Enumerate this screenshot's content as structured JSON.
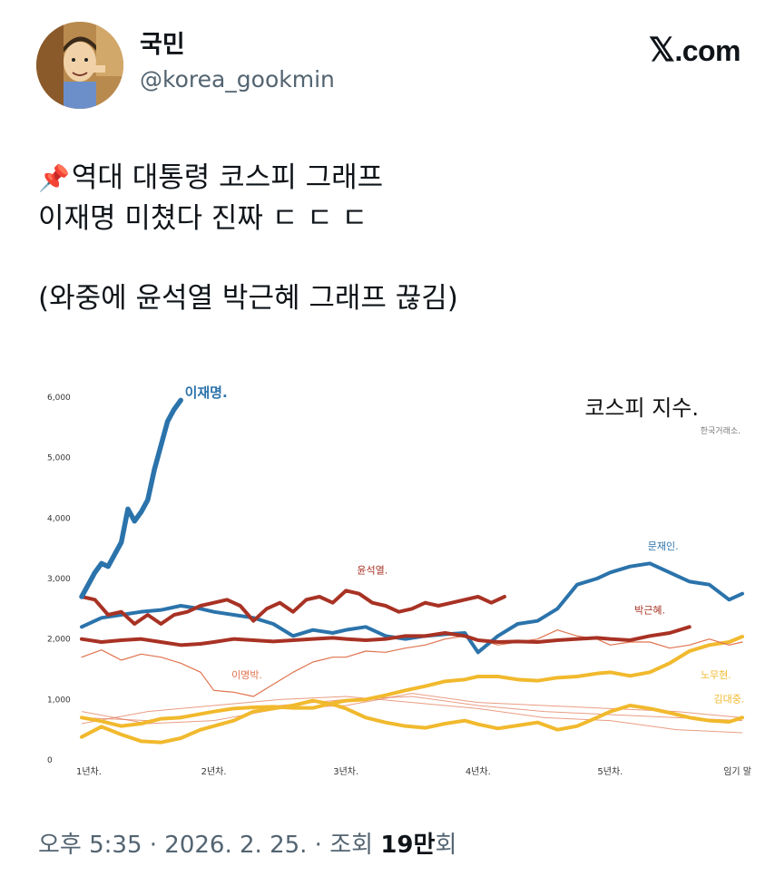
{
  "author": {
    "display_name": "국민",
    "handle": "@korea_gookmin",
    "avatar_icon": "cartoon-man-avatar"
  },
  "brand": {
    "label": ".com",
    "glyph": "𝕏"
  },
  "tweet": {
    "pin_icon": "📌",
    "line1": "역대 대통령 코스피 그래프",
    "line2": "이재명 미쳤다 진짜 ㄷ ㄷ ㄷ",
    "line3": "(와중에 윤석열 박근혜 그래프 끊김)"
  },
  "meta": {
    "time": "오후 5:35",
    "date": "2026. 2. 25.",
    "views_label": "조회",
    "views_count": "19만",
    "views_suffix": "회",
    "separator": " · "
  },
  "chart_data": {
    "type": "line",
    "title": "코스피 지수.",
    "subtitle": "한국거래소.",
    "y_ticks": [
      "6,000",
      "5,000",
      "4,000",
      "3,000",
      "2,000",
      "1,000",
      "0"
    ],
    "ylim": [
      0,
      6000
    ],
    "xlim": [
      0,
      5
    ],
    "x_ticks": [
      {
        "label": "1년차.",
        "value": 0
      },
      {
        "label": "2년차.",
        "value": 1
      },
      {
        "label": "3년차.",
        "value": 2
      },
      {
        "label": "4년차.",
        "value": 3
      },
      {
        "label": "5년차.",
        "value": 4
      },
      {
        "label": "임기 말",
        "value": 5
      }
    ],
    "grid": false,
    "series": [
      {
        "name": "김대중.",
        "color": "#f1b92d",
        "x": [
          0,
          0.15,
          0.3,
          0.45,
          0.6,
          0.75,
          0.9,
          1.0,
          1.15,
          1.3,
          1.45,
          1.6,
          1.75,
          1.9,
          2.0,
          2.15,
          2.3,
          2.45,
          2.6,
          2.75,
          2.9,
          3.0,
          3.15,
          3.3,
          3.45,
          3.6,
          3.75,
          3.9,
          4.0,
          4.15,
          4.3,
          4.45,
          4.6,
          4.75,
          4.9,
          5.0
        ],
        "y": [
          380,
          550,
          420,
          310,
          290,
          360,
          500,
          560,
          650,
          800,
          850,
          900,
          980,
          920,
          850,
          700,
          620,
          560,
          530,
          600,
          650,
          590,
          520,
          570,
          620,
          500,
          560,
          700,
          800,
          900,
          850,
          780,
          700,
          650,
          630,
          700
        ]
      },
      {
        "name": "노무현.",
        "color": "#f1b92d",
        "x": [
          0,
          0.15,
          0.3,
          0.45,
          0.6,
          0.75,
          0.9,
          1.0,
          1.15,
          1.3,
          1.45,
          1.6,
          1.75,
          1.9,
          2.0,
          2.15,
          2.3,
          2.45,
          2.6,
          2.75,
          2.9,
          3.0,
          3.15,
          3.3,
          3.45,
          3.6,
          3.75,
          3.9,
          4.0,
          4.15,
          4.3,
          4.45,
          4.6,
          4.75,
          4.9,
          5.0
        ],
        "y": [
          700,
          640,
          560,
          600,
          680,
          700,
          760,
          800,
          850,
          870,
          880,
          860,
          860,
          940,
          980,
          1000,
          1070,
          1150,
          1220,
          1300,
          1330,
          1380,
          1380,
          1330,
          1310,
          1360,
          1380,
          1430,
          1450,
          1390,
          1450,
          1600,
          1800,
          1900,
          1950,
          2040
        ]
      },
      {
        "name": "이명박.",
        "color": "#e0734f",
        "x": [
          0,
          0.15,
          0.3,
          0.45,
          0.6,
          0.75,
          0.9,
          1.0,
          1.15,
          1.3,
          1.45,
          1.6,
          1.75,
          1.9,
          2.0,
          2.15,
          2.3,
          2.45,
          2.6,
          2.75,
          2.9,
          3.0,
          3.15,
          3.3,
          3.45,
          3.6,
          3.75,
          3.9,
          4.0,
          4.15,
          4.3,
          4.45,
          4.6,
          4.75,
          4.9,
          5.0
        ],
        "y": [
          1700,
          1820,
          1650,
          1750,
          1700,
          1600,
          1450,
          1150,
          1120,
          1050,
          1250,
          1450,
          1620,
          1700,
          1700,
          1800,
          1780,
          1850,
          1900,
          2000,
          2050,
          2000,
          1900,
          1950,
          2000,
          2150,
          2050,
          2000,
          1900,
          1950,
          1950,
          1850,
          1900,
          2000,
          1900,
          1950
        ]
      },
      {
        "name": "문재인.",
        "color": "#2b73ab",
        "x": [
          0,
          0.15,
          0.3,
          0.45,
          0.6,
          0.75,
          0.9,
          1.0,
          1.15,
          1.3,
          1.45,
          1.6,
          1.75,
          1.9,
          2.0,
          2.15,
          2.3,
          2.45,
          2.6,
          2.75,
          2.9,
          3.0,
          3.15,
          3.3,
          3.45,
          3.6,
          3.75,
          3.9,
          4.0,
          4.15,
          4.3,
          4.45,
          4.6,
          4.75,
          4.9,
          5.0
        ],
        "y": [
          2200,
          2350,
          2400,
          2450,
          2480,
          2550,
          2500,
          2450,
          2400,
          2350,
          2250,
          2050,
          2150,
          2100,
          2150,
          2200,
          2050,
          2000,
          2050,
          2080,
          2100,
          1780,
          2050,
          2250,
          2300,
          2500,
          2900,
          3000,
          3100,
          3200,
          3250,
          3100,
          2950,
          2900,
          2650,
          2750
        ]
      },
      {
        "name": "박근혜.",
        "color": "#a83224",
        "x": [
          0,
          0.15,
          0.3,
          0.45,
          0.6,
          0.75,
          0.9,
          1.0,
          1.15,
          1.3,
          1.45,
          1.6,
          1.75,
          1.9,
          2.0,
          2.15,
          2.3,
          2.45,
          2.6,
          2.75,
          2.9,
          3.0,
          3.15,
          3.3,
          3.45,
          3.6,
          3.75,
          3.9,
          4.0,
          4.15,
          4.3,
          4.45,
          4.6
        ],
        "y": [
          2000,
          1950,
          1980,
          2000,
          1950,
          1900,
          1920,
          1950,
          2000,
          1980,
          1960,
          1980,
          2000,
          2020,
          2000,
          1980,
          2000,
          2050,
          2050,
          2100,
          2050,
          1980,
          1950,
          1960,
          1950,
          1980,
          2000,
          2020,
          2000,
          1980,
          2050,
          2100,
          2200
        ]
      },
      {
        "name": "윤석열.",
        "color": "#a83224",
        "x": [
          0,
          0.1,
          0.2,
          0.3,
          0.4,
          0.5,
          0.6,
          0.7,
          0.8,
          0.9,
          1.0,
          1.1,
          1.2,
          1.3,
          1.4,
          1.5,
          1.6,
          1.7,
          1.8,
          1.9,
          2.0,
          2.1,
          2.2,
          2.3,
          2.4,
          2.5,
          2.6,
          2.7,
          2.8,
          2.9,
          3.0,
          3.1,
          3.2
        ],
        "y": [
          2700,
          2650,
          2400,
          2450,
          2250,
          2400,
          2250,
          2400,
          2450,
          2550,
          2600,
          2650,
          2550,
          2300,
          2500,
          2600,
          2450,
          2650,
          2700,
          2600,
          2800,
          2750,
          2600,
          2550,
          2450,
          2500,
          2600,
          2550,
          2600,
          2650,
          2700,
          2600,
          2700
        ]
      },
      {
        "name": "이재명.",
        "color": "#2b73ab",
        "x": [
          0,
          0.05,
          0.1,
          0.15,
          0.2,
          0.25,
          0.3,
          0.35,
          0.4,
          0.45,
          0.5,
          0.55,
          0.6,
          0.65,
          0.7,
          0.75
        ],
        "y": [
          2700,
          2900,
          3100,
          3250,
          3200,
          3400,
          3600,
          4150,
          3950,
          4100,
          4300,
          4800,
          5200,
          5600,
          5800,
          5950
        ]
      }
    ],
    "extra_thin_series": [
      {
        "name": "thin-red-a",
        "color": "#e0734f",
        "x": [
          0,
          0.5,
          1.0,
          1.5,
          2.0,
          2.5,
          3.0,
          3.5,
          4.0,
          4.5,
          5.0
        ],
        "y": [
          600,
          800,
          900,
          1000,
          1050,
          950,
          850,
          700,
          650,
          500,
          450
        ]
      },
      {
        "name": "thin-red-b",
        "color": "#e0734f",
        "x": [
          0,
          0.5,
          1.0,
          1.5,
          2.0,
          2.5,
          3.0,
          3.5,
          4.0,
          4.5,
          5.0
        ],
        "y": [
          700,
          650,
          800,
          900,
          1000,
          1050,
          900,
          800,
          750,
          700,
          650
        ]
      },
      {
        "name": "thin-red-c",
        "color": "#e0734f",
        "x": [
          0,
          0.5,
          1.0,
          1.5,
          2.0,
          2.5,
          3.0,
          3.5,
          4.0,
          4.5,
          5.0
        ],
        "y": [
          800,
          600,
          650,
          850,
          900,
          1100,
          950,
          900,
          850,
          800,
          700
        ]
      }
    ]
  }
}
